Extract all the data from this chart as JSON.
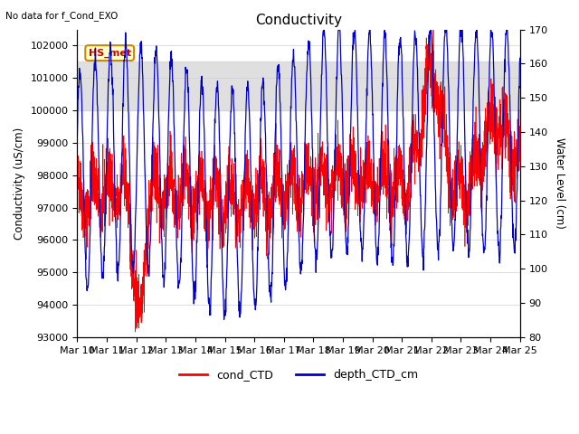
{
  "title": "Conductivity",
  "top_left_text": "No data for f_Cond_EXO",
  "legend_label": "HS_met",
  "ylabel_left": "Conductivity (uS/cm)",
  "ylabel_right": "Water Level (cm)",
  "ylim_left": [
    93000,
    102500
  ],
  "ylim_right": [
    80,
    170
  ],
  "yticks_left": [
    93000,
    94000,
    95000,
    96000,
    97000,
    98000,
    99000,
    100000,
    101000,
    102000
  ],
  "yticks_right": [
    80,
    90,
    100,
    110,
    120,
    130,
    140,
    150,
    160,
    170
  ],
  "gray_band_lower": 100000,
  "gray_band_upper": 101500,
  "line_color_cond": "#ff0000",
  "line_color_depth": "#0000cc",
  "background_color": "#ffffff",
  "legend_entries": [
    "cond_CTD",
    "depth_CTD_cm"
  ],
  "legend_colors": [
    "#ff0000",
    "#0000cc"
  ],
  "figsize": [
    6.4,
    4.8
  ],
  "dpi": 100
}
